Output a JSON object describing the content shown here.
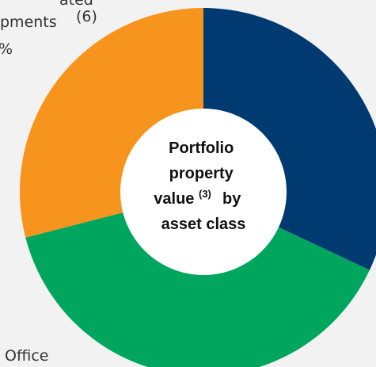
{
  "chart_data": {
    "type": "donut",
    "categories": [
      null,
      null,
      null
    ],
    "values": [
      32,
      39,
      29
    ],
    "colors": [
      "#003a70",
      "#00a65d",
      "#f7941d"
    ],
    "center_text": {
      "line1": "Portfolio",
      "line2": "property",
      "line3": "value",
      "line3_sup": "(3)",
      "line3_end": "by",
      "line4": "asset class"
    },
    "labels": {
      "top_a": "ated",
      "top_b": "pments",
      "top_b_sup": "(6)",
      "top_c": "%",
      "bottom": "Office"
    }
  }
}
